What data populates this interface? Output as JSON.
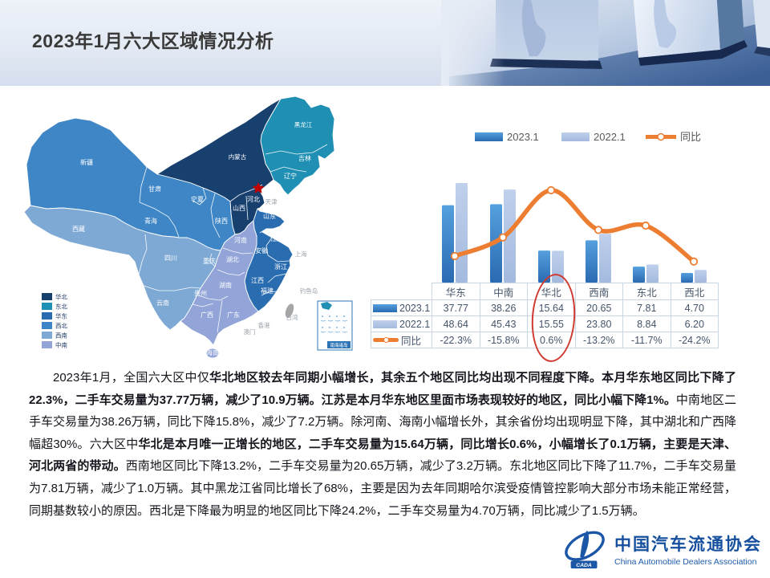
{
  "header": {
    "title": "2023年1月六大区域情况分析"
  },
  "map": {
    "legend": [
      {
        "label": "华北",
        "color": "#18406f"
      },
      {
        "label": "东北",
        "color": "#1f8fb4"
      },
      {
        "label": "华东",
        "color": "#2a6cb0"
      },
      {
        "label": "西北",
        "color": "#3f86c6"
      },
      {
        "label": "西南",
        "color": "#7ea9d4"
      },
      {
        "label": "中南",
        "color": "#92a4d8"
      }
    ],
    "provinces": [
      "黑龙江",
      "吉林",
      "辽宁",
      "内蒙古",
      "新疆",
      "甘肃",
      "青海",
      "西藏",
      "四川",
      "云南",
      "贵州",
      "广西",
      "广东",
      "湖南",
      "湖北",
      "河南",
      "山东",
      "山西",
      "河北",
      "江苏",
      "安徽",
      "浙江",
      "江西",
      "福建",
      "陕西",
      "宁夏",
      "重庆",
      "海南"
    ],
    "gray_labels": [
      "天津",
      "上海",
      "香港",
      "澳门",
      "台湾",
      "钓鱼岛"
    ],
    "capital": "北京",
    "inset_label": "南海诸岛"
  },
  "chart_data": {
    "type": "combo-bar-line",
    "categories": [
      "华东",
      "中南",
      "华北",
      "西南",
      "东北",
      "西北"
    ],
    "series": [
      {
        "name": "2023.1",
        "type": "bar",
        "values": [
          37.77,
          38.26,
          15.64,
          20.65,
          7.81,
          4.7
        ]
      },
      {
        "name": "2022.1",
        "type": "bar",
        "values": [
          48.64,
          45.43,
          15.55,
          23.8,
          8.84,
          6.2
        ]
      },
      {
        "name": "同比",
        "type": "line",
        "values_pct": [
          -22.3,
          -15.8,
          0.6,
          -13.2,
          -11.7,
          -24.2
        ]
      }
    ],
    "highlighted_category": "华北",
    "legend_position": "top"
  },
  "table": {
    "categories": [
      "华东",
      "中南",
      "华北",
      "西南",
      "东北",
      "西北"
    ],
    "rows": [
      {
        "label": "2023.1",
        "swatch": "bar-dark",
        "values": [
          "37.77",
          "38.26",
          "15.64",
          "20.65",
          "7.81",
          "4.70"
        ]
      },
      {
        "label": "2022.1",
        "swatch": "bar-light",
        "values": [
          "48.64",
          "45.43",
          "15.55",
          "23.80",
          "8.84",
          "6.20"
        ]
      },
      {
        "label": "同比",
        "swatch": "line",
        "values": [
          "-22.3%",
          "-15.8%",
          "0.6%",
          "-13.2%",
          "-11.7%",
          "-24.2%"
        ]
      }
    ]
  },
  "body": {
    "runs": [
      {
        "t": "2023年1月，全国六大区中仅",
        "b": 0
      },
      {
        "t": "华北地区较去年同期小幅增长，其余五个地区同比均出现不同程度下降。本月华东地区同比下降了22.3%，二手车交易量为37.77万辆，减少了10.9万辆。江苏是本月华东地区里面市场表现较好的地区，同比小幅下降1%。",
        "b": 1
      },
      {
        "t": "中南地区二手车交易量为38.26万辆，同比下降15.8%，减少了7.2万辆。除河南、海南小幅增长外，其余省份均出现明显下降，其中湖北和广西降幅超30%。六大区中",
        "b": 0
      },
      {
        "t": "华北是本月唯一正增长的地区，二手车交易量为15.64万辆，同比增长0.6%，小幅增长了0.1万辆，主要是天津、河北两省的带动。",
        "b": 1
      },
      {
        "t": "西南地区同比下降13.2%，二手车交易量为20.65万辆，减少了3.2万辆。东北地区同比下降了11.7%，二手车交易量为7.81万辆，减少了1.0万辆。其中黑龙江省同比增长了68%，主要是因为去年同期哈尔滨受疫情管控影响大部分市场未能正常经营，同期基数较小的原因。西北是下降最为明显的地区同比下降24.2%，二手车交易量为4.70万辆，同比减少了1.5万辆。",
        "b": 0
      }
    ]
  },
  "logo": {
    "cn": "中国汽车流通协会",
    "en": "China Automobile Dealers Association",
    "emblem": "CADA"
  }
}
